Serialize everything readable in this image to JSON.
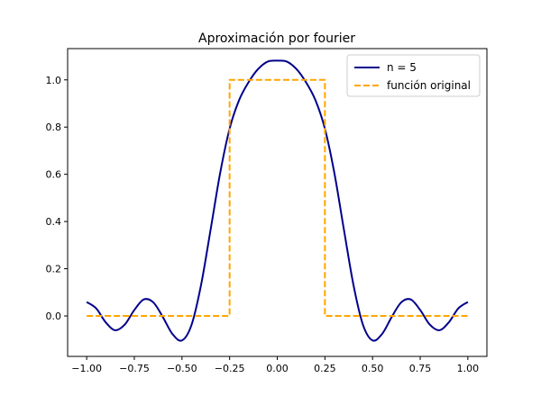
{
  "chart_data": {
    "type": "line",
    "title": "Aproximación por fourier",
    "xlabel": "",
    "ylabel": "",
    "xlim": [
      -1.1,
      1.1
    ],
    "ylim": [
      -0.1714,
      1.1325
    ],
    "x_ticks": [
      -1.0,
      -0.75,
      -0.5,
      -0.25,
      0.0,
      0.25,
      0.5,
      0.75,
      1.0
    ],
    "x_tick_labels": [
      "−1.00",
      "−0.75",
      "−0.50",
      "−0.25",
      "0.00",
      "0.25",
      "0.50",
      "0.75",
      "1.00"
    ],
    "y_ticks": [
      0.0,
      0.2,
      0.4,
      0.6,
      0.8,
      1.0
    ],
    "y_tick_labels": [
      "0.0",
      "0.2",
      "0.4",
      "0.6",
      "0.8",
      "1.0"
    ],
    "grid": false,
    "legend_position": "top-right",
    "series": [
      {
        "name": "n = 5",
        "color": "#00008b",
        "style": "solid",
        "x": [
          -1.0,
          -0.95,
          -0.9,
          -0.85,
          -0.8,
          -0.75,
          -0.7,
          -0.65,
          -0.6,
          -0.55,
          -0.5,
          -0.45,
          -0.4,
          -0.35,
          -0.3,
          -0.25,
          -0.2,
          -0.15,
          -0.1,
          -0.05,
          0.0,
          0.05,
          0.1,
          0.15,
          0.2,
          0.25,
          0.3,
          0.35,
          0.4,
          0.45,
          0.5,
          0.55,
          0.6,
          0.65,
          0.7,
          0.75,
          0.8,
          0.85,
          0.9,
          0.95,
          1.0
        ],
        "y": [
          0.0588,
          0.0319,
          -0.0273,
          -0.0606,
          -0.0365,
          0.0252,
          0.0699,
          0.0571,
          -0.0053,
          -0.0765,
          -0.1038,
          -0.0383,
          0.1305,
          0.3643,
          0.6038,
          0.7934,
          0.9147,
          0.9909,
          1.0463,
          1.0776,
          1.0813,
          1.0776,
          1.0463,
          0.9909,
          0.9147,
          0.7934,
          0.6038,
          0.3643,
          0.1305,
          -0.0383,
          -0.1038,
          -0.0765,
          -0.0053,
          0.0571,
          0.0699,
          0.0252,
          -0.0365,
          -0.0606,
          -0.0273,
          0.0319,
          0.0588
        ]
      },
      {
        "name": "función original",
        "color": "#ffa500",
        "style": "dashed",
        "x": [
          -1.0,
          -0.25,
          -0.25,
          0.25,
          0.25,
          1.0
        ],
        "y": [
          0.0,
          0.0,
          1.0,
          1.0,
          0.0,
          0.0
        ]
      }
    ]
  }
}
